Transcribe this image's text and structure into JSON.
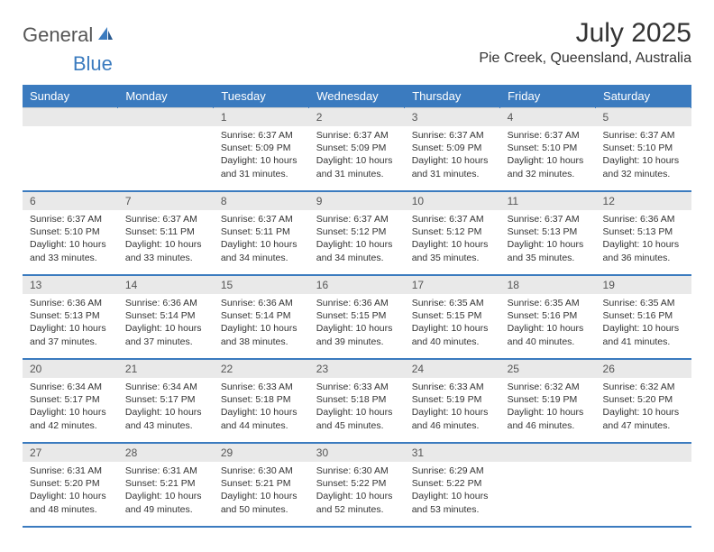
{
  "brand": {
    "part1": "General",
    "part2": "Blue"
  },
  "title": "July 2025",
  "location": "Pie Creek, Queensland, Australia",
  "colors": {
    "header_bg": "#3b7bbf",
    "header_text": "#ffffff",
    "daynum_bg": "#e9e9e9",
    "text": "#333333",
    "brand_blue": "#3b7bbf"
  },
  "day_headers": [
    "Sunday",
    "Monday",
    "Tuesday",
    "Wednesday",
    "Thursday",
    "Friday",
    "Saturday"
  ],
  "weeks": [
    [
      {
        "n": "",
        "sunrise": "",
        "sunset": "",
        "daylight": ""
      },
      {
        "n": "",
        "sunrise": "",
        "sunset": "",
        "daylight": ""
      },
      {
        "n": "1",
        "sunrise": "6:37 AM",
        "sunset": "5:09 PM",
        "daylight": "10 hours and 31 minutes."
      },
      {
        "n": "2",
        "sunrise": "6:37 AM",
        "sunset": "5:09 PM",
        "daylight": "10 hours and 31 minutes."
      },
      {
        "n": "3",
        "sunrise": "6:37 AM",
        "sunset": "5:09 PM",
        "daylight": "10 hours and 31 minutes."
      },
      {
        "n": "4",
        "sunrise": "6:37 AM",
        "sunset": "5:10 PM",
        "daylight": "10 hours and 32 minutes."
      },
      {
        "n": "5",
        "sunrise": "6:37 AM",
        "sunset": "5:10 PM",
        "daylight": "10 hours and 32 minutes."
      }
    ],
    [
      {
        "n": "6",
        "sunrise": "6:37 AM",
        "sunset": "5:10 PM",
        "daylight": "10 hours and 33 minutes."
      },
      {
        "n": "7",
        "sunrise": "6:37 AM",
        "sunset": "5:11 PM",
        "daylight": "10 hours and 33 minutes."
      },
      {
        "n": "8",
        "sunrise": "6:37 AM",
        "sunset": "5:11 PM",
        "daylight": "10 hours and 34 minutes."
      },
      {
        "n": "9",
        "sunrise": "6:37 AM",
        "sunset": "5:12 PM",
        "daylight": "10 hours and 34 minutes."
      },
      {
        "n": "10",
        "sunrise": "6:37 AM",
        "sunset": "5:12 PM",
        "daylight": "10 hours and 35 minutes."
      },
      {
        "n": "11",
        "sunrise": "6:37 AM",
        "sunset": "5:13 PM",
        "daylight": "10 hours and 35 minutes."
      },
      {
        "n": "12",
        "sunrise": "6:36 AM",
        "sunset": "5:13 PM",
        "daylight": "10 hours and 36 minutes."
      }
    ],
    [
      {
        "n": "13",
        "sunrise": "6:36 AM",
        "sunset": "5:13 PM",
        "daylight": "10 hours and 37 minutes."
      },
      {
        "n": "14",
        "sunrise": "6:36 AM",
        "sunset": "5:14 PM",
        "daylight": "10 hours and 37 minutes."
      },
      {
        "n": "15",
        "sunrise": "6:36 AM",
        "sunset": "5:14 PM",
        "daylight": "10 hours and 38 minutes."
      },
      {
        "n": "16",
        "sunrise": "6:36 AM",
        "sunset": "5:15 PM",
        "daylight": "10 hours and 39 minutes."
      },
      {
        "n": "17",
        "sunrise": "6:35 AM",
        "sunset": "5:15 PM",
        "daylight": "10 hours and 40 minutes."
      },
      {
        "n": "18",
        "sunrise": "6:35 AM",
        "sunset": "5:16 PM",
        "daylight": "10 hours and 40 minutes."
      },
      {
        "n": "19",
        "sunrise": "6:35 AM",
        "sunset": "5:16 PM",
        "daylight": "10 hours and 41 minutes."
      }
    ],
    [
      {
        "n": "20",
        "sunrise": "6:34 AM",
        "sunset": "5:17 PM",
        "daylight": "10 hours and 42 minutes."
      },
      {
        "n": "21",
        "sunrise": "6:34 AM",
        "sunset": "5:17 PM",
        "daylight": "10 hours and 43 minutes."
      },
      {
        "n": "22",
        "sunrise": "6:33 AM",
        "sunset": "5:18 PM",
        "daylight": "10 hours and 44 minutes."
      },
      {
        "n": "23",
        "sunrise": "6:33 AM",
        "sunset": "5:18 PM",
        "daylight": "10 hours and 45 minutes."
      },
      {
        "n": "24",
        "sunrise": "6:33 AM",
        "sunset": "5:19 PM",
        "daylight": "10 hours and 46 minutes."
      },
      {
        "n": "25",
        "sunrise": "6:32 AM",
        "sunset": "5:19 PM",
        "daylight": "10 hours and 46 minutes."
      },
      {
        "n": "26",
        "sunrise": "6:32 AM",
        "sunset": "5:20 PM",
        "daylight": "10 hours and 47 minutes."
      }
    ],
    [
      {
        "n": "27",
        "sunrise": "6:31 AM",
        "sunset": "5:20 PM",
        "daylight": "10 hours and 48 minutes."
      },
      {
        "n": "28",
        "sunrise": "6:31 AM",
        "sunset": "5:21 PM",
        "daylight": "10 hours and 49 minutes."
      },
      {
        "n": "29",
        "sunrise": "6:30 AM",
        "sunset": "5:21 PM",
        "daylight": "10 hours and 50 minutes."
      },
      {
        "n": "30",
        "sunrise": "6:30 AM",
        "sunset": "5:22 PM",
        "daylight": "10 hours and 52 minutes."
      },
      {
        "n": "31",
        "sunrise": "6:29 AM",
        "sunset": "5:22 PM",
        "daylight": "10 hours and 53 minutes."
      },
      {
        "n": "",
        "sunrise": "",
        "sunset": "",
        "daylight": ""
      },
      {
        "n": "",
        "sunrise": "",
        "sunset": "",
        "daylight": ""
      }
    ]
  ],
  "labels": {
    "sunrise": "Sunrise:",
    "sunset": "Sunset:",
    "daylight": "Daylight:"
  }
}
